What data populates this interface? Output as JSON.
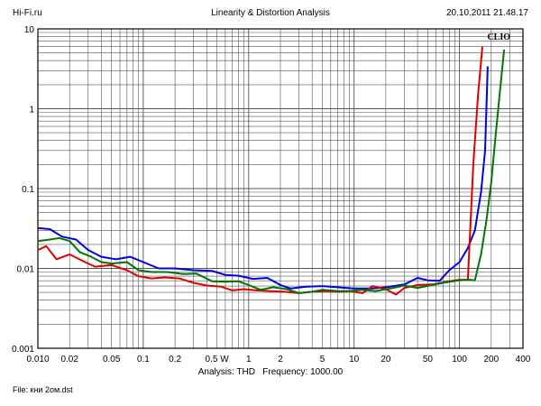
{
  "header": {
    "site": "Hi-Fi.ru",
    "title": "Linearity & Distortion Analysis",
    "timestamp": "20.10.2011 21.48.17"
  },
  "footer": {
    "analysis": "Analysis: THD   Frequency: 1000.00",
    "file": "File: кни 2ом.dst"
  },
  "chart_data": {
    "type": "line",
    "title": "Linearity & Distortion Analysis",
    "brand_label": "CLIO",
    "x_scale": "log",
    "y_scale": "log",
    "xlim": [
      0.01,
      400
    ],
    "ylim": [
      0.001,
      10
    ],
    "grid": true,
    "x_ticks": [
      {
        "v": 0.01,
        "label": "0.010"
      },
      {
        "v": 0.02,
        "label": "0.02"
      },
      {
        "v": 0.05,
        "label": "0.05"
      },
      {
        "v": 0.1,
        "label": "0.1"
      },
      {
        "v": 0.2,
        "label": "0.2"
      },
      {
        "v": 0.5,
        "label": "0.5 W"
      },
      {
        "v": 1,
        "label": "1"
      },
      {
        "v": 2,
        "label": "2"
      },
      {
        "v": 5,
        "label": "5"
      },
      {
        "v": 10,
        "label": "10"
      },
      {
        "v": 20,
        "label": "20"
      },
      {
        "v": 50,
        "label": "50"
      },
      {
        "v": 100,
        "label": "100"
      },
      {
        "v": 200,
        "label": "200"
      },
      {
        "v": 400,
        "label": "400"
      }
    ],
    "y_ticks": [
      {
        "v": 10,
        "label": "10"
      },
      {
        "v": 1,
        "label": "1"
      },
      {
        "v": 0.1,
        "label": "0.1"
      },
      {
        "v": 0.01,
        "label": "0.01"
      },
      {
        "v": 0.001,
        "label": "0.001"
      }
    ],
    "series": [
      {
        "color": "#0000dd",
        "points": [
          [
            0.01,
            0.032
          ],
          [
            0.013,
            0.031
          ],
          [
            0.017,
            0.025
          ],
          [
            0.023,
            0.023
          ],
          [
            0.03,
            0.017
          ],
          [
            0.04,
            0.014
          ],
          [
            0.055,
            0.013
          ],
          [
            0.075,
            0.014
          ],
          [
            0.1,
            0.012
          ],
          [
            0.14,
            0.01
          ],
          [
            0.2,
            0.01
          ],
          [
            0.3,
            0.0095
          ],
          [
            0.45,
            0.0093
          ],
          [
            0.6,
            0.0083
          ],
          [
            0.8,
            0.0081
          ],
          [
            1.1,
            0.0074
          ],
          [
            1.5,
            0.0076
          ],
          [
            2,
            0.0062
          ],
          [
            2.5,
            0.0056
          ],
          [
            3.5,
            0.0059
          ],
          [
            5,
            0.006
          ],
          [
            7,
            0.0058
          ],
          [
            10,
            0.0056
          ],
          [
            15,
            0.0056
          ],
          [
            20,
            0.0058
          ],
          [
            30,
            0.0063
          ],
          [
            40,
            0.0076
          ],
          [
            50,
            0.0071
          ],
          [
            65,
            0.007
          ],
          [
            80,
            0.0095
          ],
          [
            100,
            0.012
          ],
          [
            120,
            0.018
          ],
          [
            140,
            0.03
          ],
          [
            160,
            0.09
          ],
          [
            175,
            0.3
          ],
          [
            185,
            3.4
          ]
        ]
      },
      {
        "color": "#dd0000",
        "points": [
          [
            0.01,
            0.017
          ],
          [
            0.012,
            0.019
          ],
          [
            0.015,
            0.013
          ],
          [
            0.02,
            0.015
          ],
          [
            0.028,
            0.012
          ],
          [
            0.035,
            0.0105
          ],
          [
            0.05,
            0.011
          ],
          [
            0.07,
            0.0095
          ],
          [
            0.09,
            0.008
          ],
          [
            0.12,
            0.0075
          ],
          [
            0.16,
            0.0077
          ],
          [
            0.22,
            0.0075
          ],
          [
            0.3,
            0.0066
          ],
          [
            0.4,
            0.0061
          ],
          [
            0.55,
            0.0059
          ],
          [
            0.7,
            0.0053
          ],
          [
            0.9,
            0.0055
          ],
          [
            1.2,
            0.0053
          ],
          [
            1.6,
            0.0052
          ],
          [
            2.2,
            0.0051
          ],
          [
            3,
            0.0049
          ],
          [
            4,
            0.0051
          ],
          [
            5.5,
            0.0052
          ],
          [
            7,
            0.0051
          ],
          [
            9,
            0.0052
          ],
          [
            12,
            0.0049
          ],
          [
            15,
            0.006
          ],
          [
            20,
            0.0055
          ],
          [
            25,
            0.0047
          ],
          [
            30,
            0.0057
          ],
          [
            40,
            0.0062
          ],
          [
            55,
            0.0063
          ],
          [
            75,
            0.0068
          ],
          [
            100,
            0.0072
          ],
          [
            120,
            0.0072
          ],
          [
            135,
            0.2
          ],
          [
            150,
            1.5
          ],
          [
            165,
            6
          ]
        ]
      },
      {
        "color": "#007700",
        "points": [
          [
            0.01,
            0.022
          ],
          [
            0.013,
            0.023
          ],
          [
            0.016,
            0.024
          ],
          [
            0.02,
            0.022
          ],
          [
            0.025,
            0.016
          ],
          [
            0.032,
            0.014
          ],
          [
            0.04,
            0.012
          ],
          [
            0.05,
            0.0115
          ],
          [
            0.07,
            0.012
          ],
          [
            0.09,
            0.0095
          ],
          [
            0.12,
            0.009
          ],
          [
            0.17,
            0.009
          ],
          [
            0.24,
            0.0085
          ],
          [
            0.32,
            0.0086
          ],
          [
            0.45,
            0.0069
          ],
          [
            0.6,
            0.0068
          ],
          [
            0.8,
            0.0069
          ],
          [
            1,
            0.0062
          ],
          [
            1.3,
            0.0054
          ],
          [
            1.7,
            0.0058
          ],
          [
            2.3,
            0.0055
          ],
          [
            3,
            0.0049
          ],
          [
            4,
            0.0051
          ],
          [
            5,
            0.0054
          ],
          [
            7,
            0.0052
          ],
          [
            9,
            0.0052
          ],
          [
            12,
            0.0054
          ],
          [
            16,
            0.0052
          ],
          [
            22,
            0.0056
          ],
          [
            30,
            0.0061
          ],
          [
            40,
            0.0057
          ],
          [
            55,
            0.0062
          ],
          [
            75,
            0.0067
          ],
          [
            100,
            0.0071
          ],
          [
            125,
            0.0072
          ],
          [
            140,
            0.0071
          ],
          [
            160,
            0.015
          ],
          [
            180,
            0.04
          ],
          [
            200,
            0.12
          ],
          [
            220,
            0.45
          ],
          [
            240,
            1.5
          ],
          [
            265,
            5.5
          ]
        ]
      }
    ]
  }
}
